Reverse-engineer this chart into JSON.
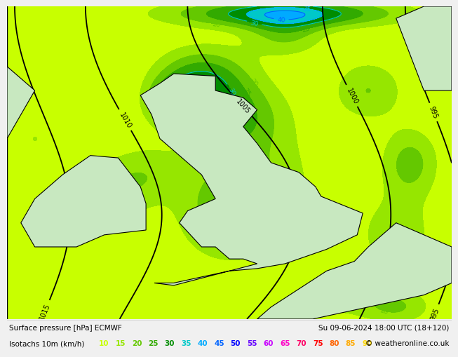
{
  "title_left": "Surface pressure [hPa] ECMWF",
  "title_right": "Su 09-06-2024 18:00 UTC (18+120)",
  "legend_label": "Isotachs 10m (km/h)",
  "copyright": "© weatheronline.co.uk",
  "isotach_values": [
    10,
    15,
    20,
    25,
    30,
    35,
    40,
    45,
    50,
    55,
    60,
    65,
    70,
    75,
    80,
    85,
    90
  ],
  "isotach_colors": [
    "#c8ff00",
    "#96e600",
    "#64c800",
    "#32aa00",
    "#008c00",
    "#00c8c8",
    "#00aaff",
    "#0064ff",
    "#0000ff",
    "#6400ff",
    "#c800ff",
    "#ff00c8",
    "#ff0064",
    "#ff0000",
    "#ff6400",
    "#ffaa00",
    "#ffd700"
  ],
  "bg_color": "#e0e0e0",
  "land_color": "#c8e8c0",
  "sea_color": "#e8e8e8",
  "footer_bg": "#ffffff",
  "lon_min": -11.0,
  "lon_max": 5.0,
  "lat_min": 48.5,
  "lat_max": 61.5
}
